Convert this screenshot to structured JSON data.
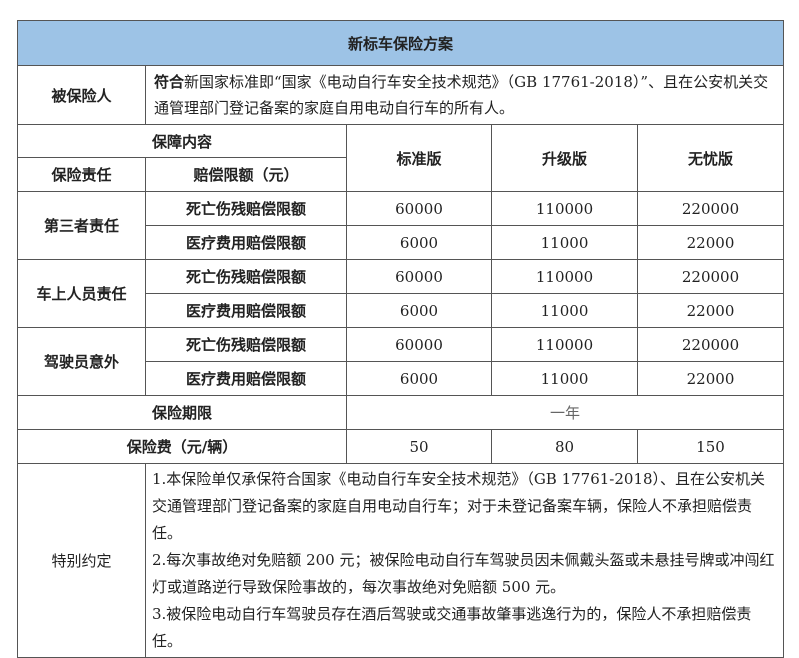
{
  "title": "新标车保险方案",
  "insured": {
    "label": "被保险人",
    "bold_prefix": "符合",
    "text": "新国家标准即“国家《电动自行车安全技术规范》（GB 17761-2018）”、且在公安机关交通管理部门登记备案的家庭自用电动自行车的所有人。"
  },
  "header": {
    "coverage": "保障内容",
    "liability": "保险责任",
    "limit": "赔偿限额（元）",
    "plans": [
      "标准版",
      "升级版",
      "无忧版"
    ]
  },
  "groups": [
    {
      "name": "第三者责任",
      "rows": [
        {
          "item": "死亡伤残赔偿限额",
          "values": [
            "60000",
            "110000",
            "220000"
          ]
        },
        {
          "item": "医疗费用赔偿限额",
          "values": [
            "6000",
            "11000",
            "22000"
          ]
        }
      ]
    },
    {
      "name": "车上人员责任",
      "rows": [
        {
          "item": "死亡伤残赔偿限额",
          "values": [
            "60000",
            "110000",
            "220000"
          ]
        },
        {
          "item": "医疗费用赔偿限额",
          "values": [
            "6000",
            "11000",
            "22000"
          ]
        }
      ]
    },
    {
      "name": "驾驶员意外",
      "rows": [
        {
          "item": "死亡伤残赔偿限额",
          "values": [
            "60000",
            "110000",
            "220000"
          ]
        },
        {
          "item": "医疗费用赔偿限额",
          "values": [
            "6000",
            "11000",
            "22000"
          ]
        }
      ]
    }
  ],
  "period": {
    "label": "保险期限",
    "value": "一年"
  },
  "premium": {
    "label": "保险费（元/辆）",
    "values": [
      "50",
      "80",
      "150"
    ]
  },
  "special": {
    "label": "特别约定",
    "items": [
      "1.本保险单仅承保符合国家《电动自行车安全技术规范》（GB 17761-2018）、且在公安机关交通管理部门登记备案的家庭自用电动自行车；对于未登记备案车辆，保险人不承担赔偿责任。",
      "2.每次事故绝对免赔额 200 元；被保险电动自行车驾驶员因未佩戴头盔或未悬挂号牌或冲闯红灯或道路逆行导致保险事故的，每次事故绝对免赔额 500 元。",
      "3.被保险电动自行车驾驶员存在酒后驾驶或交通事故肇事逃逸行为的，保险人不承担赔偿责任。"
    ]
  },
  "colors": {
    "title_bg": "#9dc3e6",
    "border": "#555555"
  }
}
